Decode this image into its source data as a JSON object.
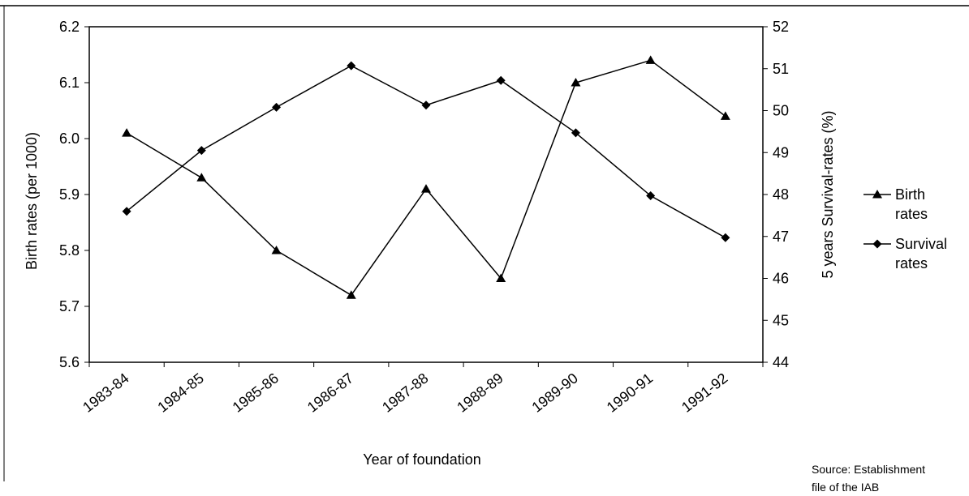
{
  "chart_data": {
    "type": "line",
    "xlabel": "Year of foundation",
    "ylabel_left": "Birth rates (per 1000)",
    "ylabel_right": "5 years Survival-rates (%)",
    "categories": [
      "1983-84",
      "1984-85",
      "1985-86",
      "1986-87",
      "1987-88",
      "1988-89",
      "1989-90",
      "1990-91",
      "1991-92"
    ],
    "y_left": {
      "min": 5.6,
      "max": 6.2,
      "ticks": [
        "5.6",
        "5.7",
        "5.8",
        "5.9",
        "6.0",
        "6.1",
        "6.2"
      ]
    },
    "y_right": {
      "min": 44,
      "max": 52,
      "ticks": [
        "44",
        "45",
        "46",
        "47",
        "48",
        "49",
        "50",
        "51",
        "52"
      ]
    },
    "grid": false,
    "legend_position": "right",
    "series": [
      {
        "name": "Birth rates",
        "legend_lines": [
          "Birth",
          "rates"
        ],
        "axis": "left",
        "marker": "triangle",
        "values": [
          6.01,
          5.93,
          5.8,
          5.72,
          5.91,
          5.75,
          6.1,
          6.14,
          6.04
        ]
      },
      {
        "name": "Survival rates",
        "legend_lines": [
          "Survival",
          "rates"
        ],
        "axis": "right",
        "marker": "diamond",
        "values": [
          47.6,
          49.05,
          50.08,
          51.07,
          50.13,
          50.72,
          49.47,
          47.97,
          46.97
        ]
      }
    ],
    "source_lines": [
      "Source: Establishment",
      "file of the IAB"
    ]
  }
}
